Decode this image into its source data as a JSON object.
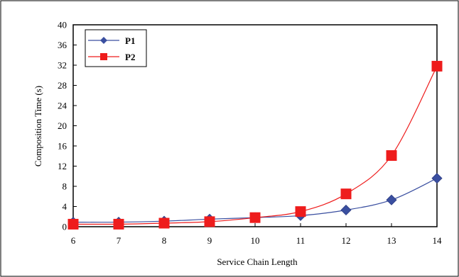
{
  "chart_data": {
    "type": "line",
    "title": "",
    "xlabel": "Service Chain Length",
    "ylabel": "Composition Time (s)",
    "x": [
      6,
      7,
      8,
      9,
      10,
      11,
      12,
      13,
      14
    ],
    "xlim": [
      6,
      14
    ],
    "ylim": [
      0,
      40
    ],
    "x_ticks": [
      6,
      7,
      8,
      9,
      10,
      11,
      12,
      13,
      14
    ],
    "y_ticks": [
      0,
      4,
      8,
      12,
      16,
      20,
      24,
      28,
      32,
      36,
      40
    ],
    "grid": false,
    "legend_position": "top-left",
    "series": [
      {
        "name": "P1",
        "marker": "diamond",
        "color": "#3a4fa0",
        "values": [
          0.9,
          0.9,
          1.1,
          1.5,
          1.8,
          2.2,
          3.3,
          5.3,
          9.6
        ]
      },
      {
        "name": "P2",
        "marker": "square",
        "color": "#ee1c1c",
        "values": [
          0.5,
          0.5,
          0.7,
          1.0,
          1.8,
          3.0,
          6.5,
          14.1,
          31.8
        ]
      }
    ]
  }
}
